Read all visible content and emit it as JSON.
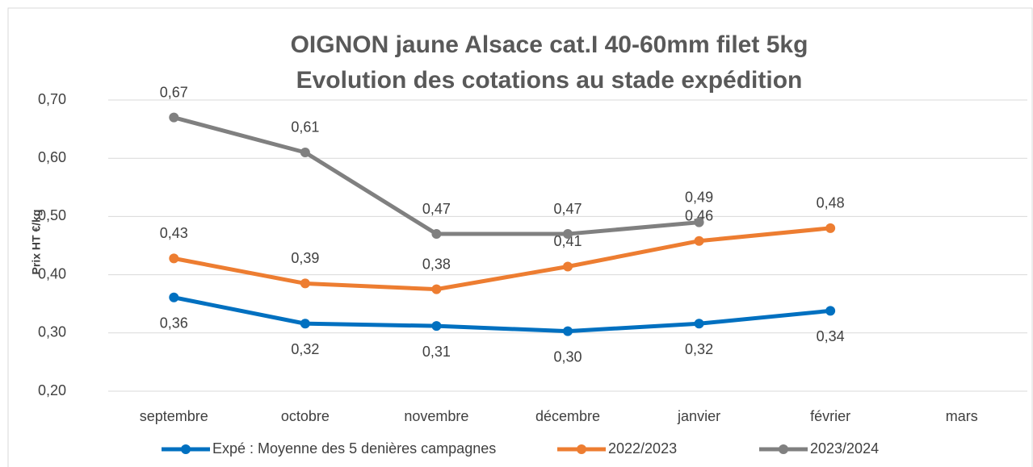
{
  "chart_data": {
    "type": "line",
    "title": "OIGNON jaune Alsace cat.I 40-60mm filet 5kg",
    "subtitle": "Evolution des cotations au stade expédition",
    "y_label": "Prix HT €/kg",
    "categories": [
      "septembre",
      "octobre",
      "novembre",
      "décembre",
      "janvier",
      "février",
      "mars"
    ],
    "series": [
      {
        "name": "Expé : Moyenne des 5 denières campagnes",
        "color": "#0070c0",
        "values": [
          0.361,
          0.316,
          0.312,
          0.303,
          0.316,
          0.338,
          null
        ],
        "value_labels": [
          "0,36",
          "0,32",
          "0,31",
          "0,30",
          "0,32",
          "0,34",
          null
        ]
      },
      {
        "name": "2022/2023",
        "color": "#ed7d31",
        "values": [
          0.428,
          0.385,
          0.375,
          0.414,
          0.458,
          0.48,
          null
        ],
        "value_labels": [
          "0,43",
          "0,39",
          "0,38",
          "0,41",
          "0,46",
          "0,48",
          null
        ]
      },
      {
        "name": "2023/2024",
        "color": "#808080",
        "values": [
          0.67,
          0.61,
          0.47,
          0.47,
          0.49,
          null,
          null
        ],
        "value_labels": [
          "0,67",
          "0,61",
          "0,47",
          "0,47",
          "0,49",
          null,
          null
        ]
      }
    ],
    "ylim": [
      0.2,
      0.7
    ],
    "yticks": [
      {
        "value": 0.2,
        "label": "0,20"
      },
      {
        "value": 0.3,
        "label": "0,30"
      },
      {
        "value": 0.4,
        "label": "0,40"
      },
      {
        "value": 0.5,
        "label": "0,50"
      },
      {
        "value": 0.6,
        "label": "0,60"
      },
      {
        "value": 0.7,
        "label": "0,70"
      }
    ],
    "grid": true,
    "legend": "bottom"
  }
}
